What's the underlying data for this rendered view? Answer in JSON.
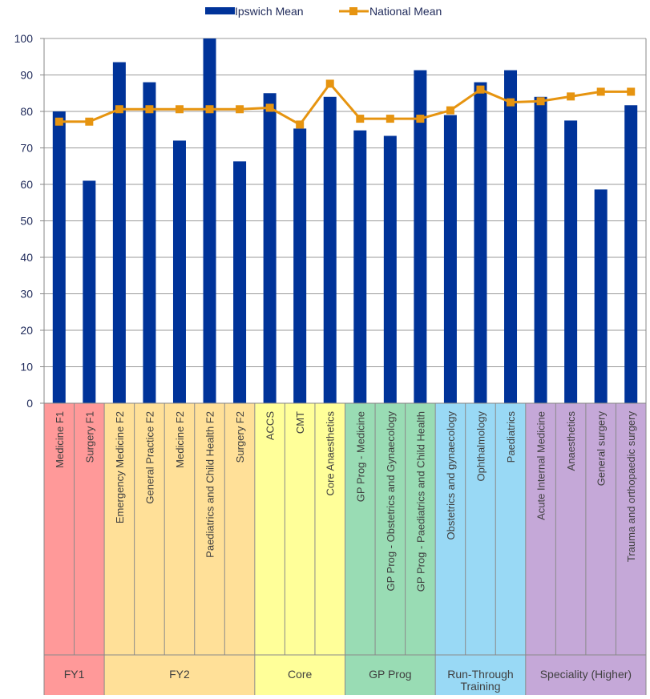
{
  "chart_data": {
    "type": "bar",
    "title": "",
    "xlabel": "",
    "ylabel": "",
    "ylim": [
      0,
      100
    ],
    "y_ticks": [
      "0",
      "10",
      "20",
      "30",
      "40",
      "50",
      "60",
      "70",
      "80",
      "90",
      "100"
    ],
    "grid": true,
    "legend_position": "top",
    "categories": [
      "Medicine F1",
      "Surgery F1",
      "Emergency Medicine F2",
      "General Practice F2",
      "Medicine F2",
      "Paediatrics and Child Health F2",
      "Surgery F2",
      "ACCS",
      "CMT",
      "Core Anaesthetics",
      "GP Prog - Medicine",
      "GP Prog - Obstetrics and Gynaecology",
      "GP Prog - Paediatrics and Child Health",
      "Obstetrics and gynaecology",
      "Ophthalmology",
      "Paediatrics",
      "Acute Internal Medicine",
      "Anaesthetics",
      "General surgery",
      "Trauma and orthopaedic surgery"
    ],
    "series": [
      {
        "name": "Ipswich Mean",
        "kind": "bar",
        "color": "#003399",
        "values": [
          80,
          61,
          93.5,
          88,
          72,
          100,
          66.3,
          85,
          75.3,
          84,
          74.8,
          73.3,
          91.3,
          79,
          88,
          91.3,
          84,
          77.5,
          58.6,
          81.7
        ]
      },
      {
        "name": "National Mean",
        "kind": "line",
        "color": "#e69410",
        "values": [
          77.2,
          77.2,
          80.6,
          80.6,
          80.6,
          80.6,
          80.6,
          81,
          76.4,
          87.6,
          78,
          78,
          78,
          80.3,
          86,
          82.5,
          82.8,
          84.1,
          85.4,
          85.4
        ]
      }
    ],
    "groups": [
      {
        "label": "FY1",
        "count": 2,
        "color": "#ff9999"
      },
      {
        "label": "FY2",
        "count": 5,
        "color": "#ffe098"
      },
      {
        "label": "Core",
        "count": 3,
        "color": "#ffff99"
      },
      {
        "label": "GP Prog",
        "count": 3,
        "color": "#99dcb4"
      },
      {
        "label": "Run-Through Training",
        "count": 3,
        "color": "#99d9f5"
      },
      {
        "label": "Speciality (Higher)",
        "count": 4,
        "color": "#c5a8d8"
      }
    ]
  }
}
